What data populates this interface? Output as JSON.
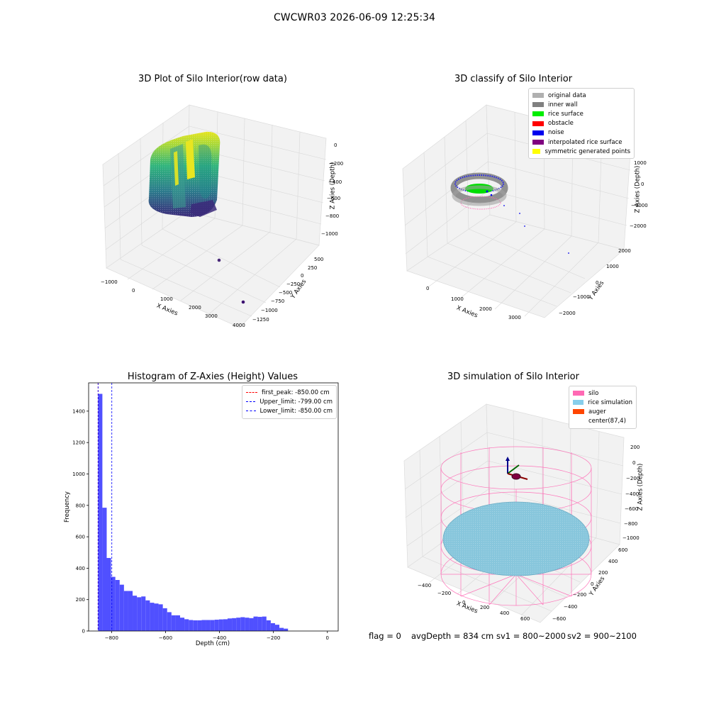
{
  "suptitle": "CWCWR03 2026-06-09 12:25:34",
  "status": {
    "flag": "flag = 0",
    "avg_depth": "avgDepth = 834 cm",
    "sv1": "sv1 = 800~2000",
    "sv2": "sv2 = 900~2100"
  },
  "chart_data": [
    {
      "type": "scatter",
      "projection": "3d",
      "title": "3D Plot of Silo Interior(row data)",
      "xlabel": "X Axies",
      "ylabel": "Y Axies",
      "zlabel": "Z Axies (Depth)",
      "x_ticks": [
        "−1000",
        "0",
        "1000",
        "2000",
        "3000",
        "4000"
      ],
      "y_ticks": [
        "500",
        "250",
        "0",
        "−250",
        "−500",
        "−750",
        "−1000",
        "−1250"
      ],
      "z_ticks": [
        "0",
        "−200",
        "−400",
        "−600",
        "−800",
        "−1000"
      ],
      "colormap": "viridis"
    },
    {
      "type": "scatter",
      "projection": "3d",
      "title": "3D classify of Silo Interior",
      "xlabel": "X Axies",
      "ylabel": "Y Axies",
      "zlabel": "Z Axies (Depth)",
      "x_ticks": [
        "0",
        "1000",
        "2000",
        "3000"
      ],
      "y_ticks": [
        "2000",
        "1000",
        "0",
        "−1000",
        "−2000"
      ],
      "z_ticks": [
        "1000",
        "0",
        "−1000",
        "−2000"
      ],
      "legend": [
        {
          "label": "original data",
          "color": "#b0b0b0"
        },
        {
          "label": "inner wall",
          "color": "#808080"
        },
        {
          "label": "rice surface",
          "color": "#00ee00"
        },
        {
          "label": "obstacle",
          "color": "#ff0000"
        },
        {
          "label": "noise",
          "color": "#0000ee"
        },
        {
          "label": "interpolated rice surface",
          "color": "#800080"
        },
        {
          "label": "symmetric generated points",
          "color": "#ffff00"
        }
      ],
      "legend_position": "top-right"
    },
    {
      "type": "bar",
      "title": "Histogram of Z-Axies (Height) Values",
      "xlabel": "Depth (cm)",
      "ylabel": "Frequency",
      "bar_color": "#5050ff",
      "bin_width": 16,
      "bins_start": -850,
      "xlim": [
        -885,
        40
      ],
      "ylim": [
        0,
        1580
      ],
      "x_ticks": [
        -800,
        -600,
        -400,
        -200,
        0
      ],
      "y_ticks": [
        0,
        200,
        400,
        600,
        800,
        1000,
        1200,
        1400
      ],
      "values": [
        1510,
        785,
        465,
        345,
        325,
        295,
        255,
        255,
        225,
        215,
        220,
        195,
        180,
        175,
        170,
        145,
        120,
        100,
        100,
        85,
        75,
        70,
        68,
        68,
        70,
        70,
        70,
        72,
        74,
        75,
        80,
        82,
        85,
        88,
        85,
        82,
        92,
        90,
        92,
        68,
        50,
        40,
        20,
        15
      ],
      "lines": [
        {
          "label": "first_peak: -850.00 cm",
          "value": -850,
          "color": "#ff0000"
        },
        {
          "label": "Upper_limit: -799.00 cm",
          "value": -799,
          "color": "#0000ff"
        },
        {
          "label": "Lower_limit: -850.00 cm",
          "value": -850,
          "color": "#0000ff"
        }
      ],
      "legend_position": "top-right"
    },
    {
      "type": "scatter",
      "projection": "3d",
      "title": "3D simulation of Silo Interior",
      "xlabel": "X Axies",
      "ylabel": "Y Axies",
      "zlabel": "Z Axies (Depth)",
      "x_ticks": [
        "−400",
        "−200",
        "0",
        "200",
        "400",
        "600"
      ],
      "y_ticks": [
        "600",
        "400",
        "200",
        "0",
        "−200",
        "−400",
        "−600"
      ],
      "z_ticks": [
        "200",
        "0",
        "−200",
        "−400",
        "−600",
        "−800",
        "−1000"
      ],
      "legend": [
        {
          "label": "silo",
          "color": "#ff69b4"
        },
        {
          "label": "rice simulation",
          "color": "#87ceeb"
        },
        {
          "label": "auger",
          "color": "#ff4500"
        },
        {
          "label": "center(87,4)",
          "color": "#ffffff"
        }
      ],
      "legend_position": "top-right"
    }
  ]
}
